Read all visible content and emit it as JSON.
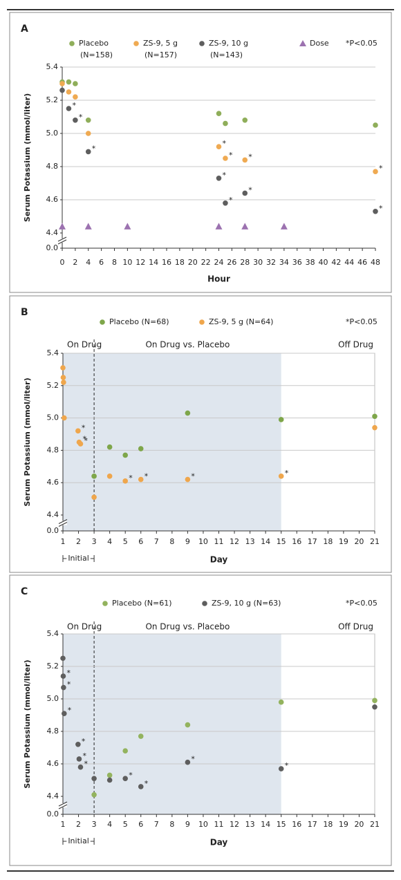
{
  "chart_data": [
    {
      "type": "scatter",
      "panel_label": "A",
      "xlabel": "Hour",
      "ylabel": "Serum Potassium (mmol/liter)",
      "xlim": [
        0,
        48
      ],
      "xticks": [
        0,
        2,
        4,
        6,
        8,
        10,
        12,
        14,
        16,
        18,
        20,
        22,
        24,
        26,
        28,
        30,
        32,
        34,
        36,
        38,
        40,
        42,
        44,
        46,
        48
      ],
      "ylim": [
        0,
        5.4
      ],
      "axis_break": [
        0,
        4.4
      ],
      "yticks": [
        {
          "value": 0,
          "label": "0.0"
        },
        4.4,
        4.6,
        4.8,
        {
          "value": 5,
          "label": "5.0"
        },
        5.2,
        5.4
      ],
      "grid": true,
      "note": "*P<0.05",
      "series": [
        {
          "name": "Placebo",
          "n": "(N=158)",
          "color": "#8fae5a",
          "marker": "circle",
          "x": [
            0,
            1,
            2,
            4,
            24,
            25,
            28,
            48
          ],
          "values": [
            5.31,
            5.31,
            5.3,
            5.08,
            5.12,
            5.06,
            5.08,
            5.05
          ]
        },
        {
          "name": "ZS-9, 5 g",
          "n": "(N=157)",
          "color": "#efaa52",
          "marker": "circle",
          "x": [
            0,
            1,
            2,
            4,
            24,
            25,
            28,
            48
          ],
          "values": [
            5.3,
            5.25,
            5.22,
            5.0,
            4.92,
            4.85,
            4.84,
            4.77
          ],
          "flags": [
            null,
            null,
            null,
            null,
            "*",
            "*",
            "*",
            "*"
          ]
        },
        {
          "name": "ZS-9, 10 g",
          "n": "(N=143)",
          "color": "#5e5e5e",
          "marker": "circle",
          "x": [
            0,
            1,
            2,
            4,
            24,
            25,
            28,
            48
          ],
          "values": [
            5.26,
            5.15,
            5.08,
            4.89,
            4.73,
            4.58,
            4.64,
            4.53
          ],
          "flags": [
            null,
            "*",
            "*",
            "*",
            "*",
            "*",
            "*",
            "*"
          ]
        },
        {
          "name": "Dose",
          "color": "#9c72b0",
          "marker": "triangle",
          "x": [
            0,
            4,
            10,
            24,
            28,
            34
          ],
          "values": [
            4.44,
            4.44,
            4.44,
            4.44,
            4.44,
            4.44
          ]
        }
      ]
    },
    {
      "type": "scatter",
      "panel_label": "B",
      "xlabel": "Day",
      "ylabel": "Serum Potassium (mmol/liter)",
      "xlim": [
        1,
        21
      ],
      "xticks": [
        1,
        2,
        3,
        4,
        5,
        6,
        7,
        8,
        9,
        10,
        11,
        12,
        13,
        14,
        15,
        16,
        17,
        18,
        19,
        20,
        21
      ],
      "ylim": [
        0,
        5.4
      ],
      "axis_break": [
        0,
        4.4
      ],
      "yticks": [
        {
          "value": 0,
          "label": "0.0"
        },
        4.4,
        4.6,
        4.8,
        {
          "value": 5,
          "label": "5.0"
        },
        5.2,
        5.4
      ],
      "grid": true,
      "note": "*P<0.05",
      "phases": [
        {
          "label": "On Drug",
          "range": [
            1,
            3
          ],
          "shaded": true
        },
        {
          "label": "On Drug vs. Placebo",
          "range": [
            3,
            15
          ],
          "shaded": true
        },
        {
          "label": "Off Drug",
          "range": [
            15,
            21
          ],
          "shaded": false
        }
      ],
      "bracket": {
        "label": "Initial",
        "range": [
          1,
          3
        ]
      },
      "series": [
        {
          "name": "Placebo (N=68)",
          "color": "#7ea64a",
          "marker": "circle",
          "x": [
            3,
            4,
            5,
            6,
            9,
            15,
            21
          ],
          "values": [
            4.64,
            4.82,
            4.77,
            4.81,
            5.03,
            4.99,
            5.01
          ]
        },
        {
          "name": "ZS-9, 5 g (N=64)",
          "color": "#efa64c",
          "marker": "circle",
          "x": [
            1,
            1.02,
            1.04,
            1.08,
            1.97,
            2.04,
            2.13,
            3,
            4,
            5,
            6,
            9,
            15,
            21
          ],
          "values": [
            5.31,
            5.25,
            5.22,
            5.0,
            4.92,
            4.85,
            4.84,
            4.51,
            4.64,
            4.61,
            4.62,
            4.62,
            4.64,
            4.94
          ],
          "flags": [
            null,
            null,
            null,
            null,
            "*",
            "*",
            "*",
            null,
            null,
            "*",
            "*",
            "*",
            "*",
            null
          ]
        }
      ]
    },
    {
      "type": "scatter",
      "panel_label": "C",
      "xlabel": "Day",
      "ylabel": "Serum Potassium (mmol/liter)",
      "xlim": [
        1,
        21
      ],
      "xticks": [
        1,
        2,
        3,
        4,
        5,
        6,
        7,
        8,
        9,
        10,
        11,
        12,
        13,
        14,
        15,
        16,
        17,
        18,
        19,
        20,
        21
      ],
      "ylim": [
        0,
        5.4
      ],
      "axis_break": [
        0,
        4.4
      ],
      "yticks": [
        {
          "value": 0,
          "label": "0.0"
        },
        4.4,
        4.6,
        4.8,
        {
          "value": 5,
          "label": "5.0"
        },
        5.2,
        5.4
      ],
      "grid": true,
      "note": "*P<0.05",
      "phases": [
        {
          "label": "On Drug",
          "range": [
            1,
            3
          ],
          "shaded": true
        },
        {
          "label": "On Drug vs. Placebo",
          "range": [
            3,
            15
          ],
          "shaded": true
        },
        {
          "label": "Off Drug",
          "range": [
            15,
            21
          ],
          "shaded": false
        }
      ],
      "bracket": {
        "label": "Initial",
        "range": [
          1,
          3
        ]
      },
      "series": [
        {
          "name": "Placebo (N=61)",
          "color": "#93b35e",
          "marker": "circle",
          "x": [
            3,
            4,
            5,
            6,
            9,
            15,
            21
          ],
          "values": [
            4.41,
            4.53,
            4.68,
            4.77,
            4.84,
            4.98,
            4.99
          ]
        },
        {
          "name": "ZS-9, 10 g (N=63)",
          "color": "#5e5e5e",
          "marker": "circle",
          "x": [
            1,
            1.02,
            1.04,
            1.08,
            1.97,
            2.04,
            2.13,
            3,
            4,
            5,
            6,
            9,
            15,
            21
          ],
          "values": [
            5.25,
            5.14,
            5.07,
            4.91,
            4.72,
            4.63,
            4.58,
            4.51,
            4.5,
            4.51,
            4.46,
            4.61,
            4.57,
            4.95
          ],
          "flags": [
            null,
            "*",
            "*",
            "*",
            "*",
            "*",
            "*",
            null,
            null,
            "*",
            "*",
            "*",
            "*",
            null
          ]
        }
      ]
    }
  ]
}
